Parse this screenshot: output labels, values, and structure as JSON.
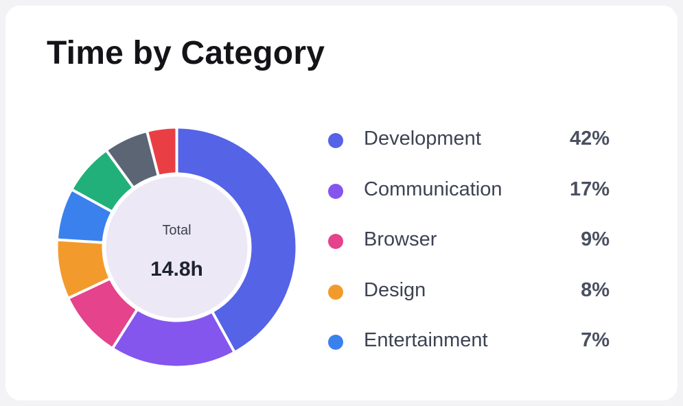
{
  "title": "Time by Category",
  "chart_data": {
    "type": "pie",
    "center": {
      "label": "Total",
      "value": "14.8h"
    },
    "slices": [
      {
        "name": "Development",
        "value": 42,
        "label": "42%",
        "color": "#5563e7",
        "in_legend": true
      },
      {
        "name": "Communication",
        "value": 17,
        "label": "17%",
        "color": "#8556ee",
        "in_legend": true
      },
      {
        "name": "Browser",
        "value": 9,
        "label": "9%",
        "color": "#e5438b",
        "in_legend": true
      },
      {
        "name": "Design",
        "value": 8,
        "label": "8%",
        "color": "#f39a2c",
        "in_legend": true
      },
      {
        "name": "Entertainment",
        "value": 7,
        "label": "7%",
        "color": "#3a81ee",
        "in_legend": true
      },
      {
        "value": 7,
        "color": "#22b07a",
        "in_legend": false
      },
      {
        "value": 6,
        "color": "#5c6574",
        "in_legend": false
      },
      {
        "value": 4,
        "color": "#e93f44",
        "in_legend": false
      }
    ],
    "legend_position": "right"
  }
}
